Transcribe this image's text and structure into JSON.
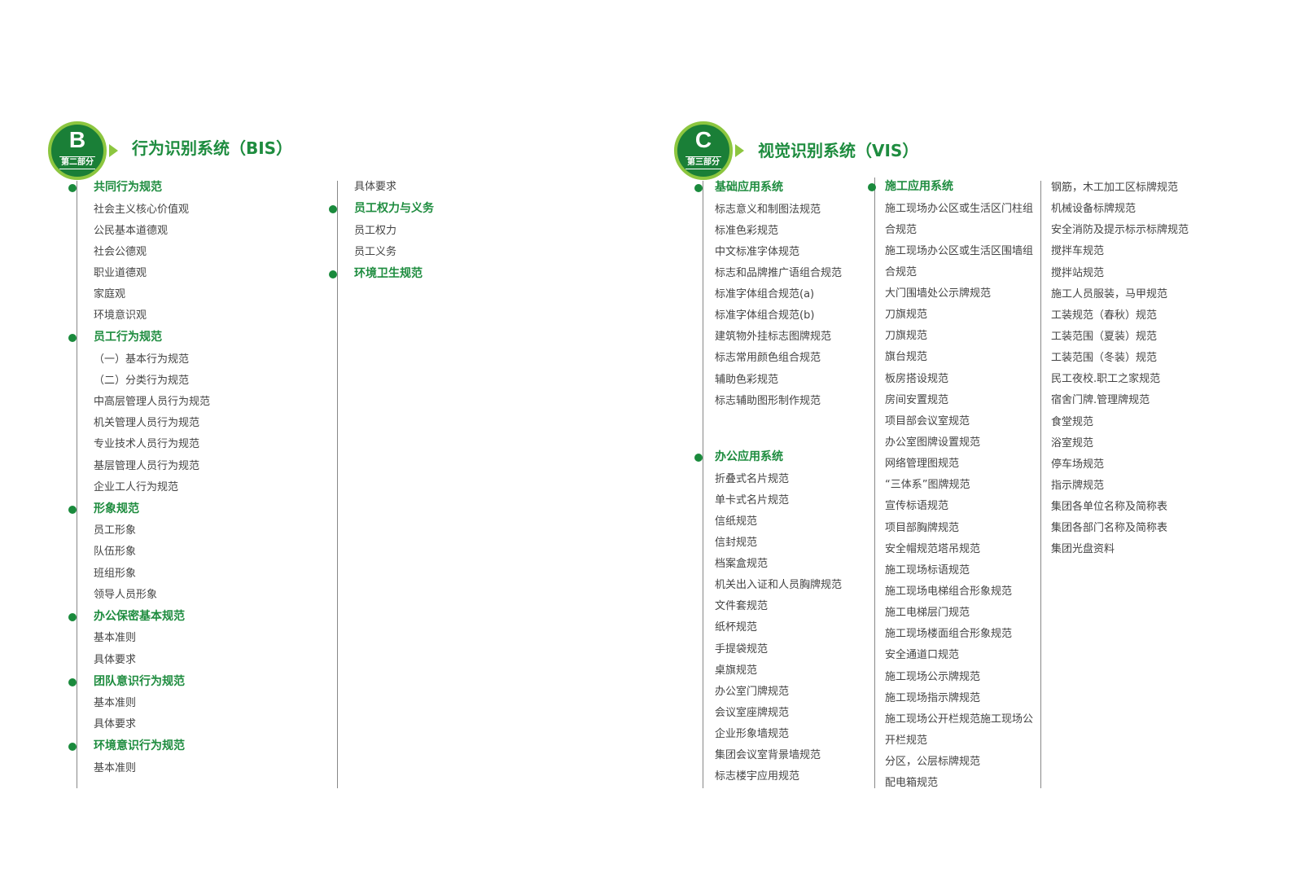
{
  "sections": [
    {
      "letter": "B",
      "part": "第二部分",
      "title": "行为识别系统（BIS）"
    },
    {
      "letter": "C",
      "part": "第三部分",
      "title": "视觉识别系统（VIS）"
    }
  ],
  "columns": {
    "b1": [
      {
        "t": "共同行为规范",
        "h": true
      },
      {
        "t": "社会主义核心价值观"
      },
      {
        "t": "公民基本道德观"
      },
      {
        "t": "社会公德观"
      },
      {
        "t": "职业道德观"
      },
      {
        "t": "家庭观"
      },
      {
        "t": "环境意识观"
      },
      {
        "t": "员工行为规范",
        "h": true
      },
      {
        "t": "（一）基本行为规范"
      },
      {
        "t": "（二）分类行为规范"
      },
      {
        "t": "中高层管理人员行为规范"
      },
      {
        "t": "机关管理人员行为规范"
      },
      {
        "t": "专业技术人员行为规范"
      },
      {
        "t": "基层管理人员行为规范"
      },
      {
        "t": "企业工人行为规范"
      },
      {
        "t": "形象规范",
        "h": true
      },
      {
        "t": "员工形象"
      },
      {
        "t": "队伍形象"
      },
      {
        "t": "班组形象"
      },
      {
        "t": "领导人员形象"
      },
      {
        "t": "办公保密基本规范",
        "h": true
      },
      {
        "t": "基本准则"
      },
      {
        "t": "具体要求"
      },
      {
        "t": "团队意识行为规范",
        "h": true
      },
      {
        "t": "基本准则"
      },
      {
        "t": "具体要求"
      },
      {
        "t": "环境意识行为规范",
        "h": true
      },
      {
        "t": "基本准则"
      }
    ],
    "b2": [
      {
        "t": "具体要求"
      },
      {
        "t": "员工权力与义务",
        "h": true
      },
      {
        "t": "员工权力"
      },
      {
        "t": "员工义务"
      },
      {
        "t": "环境卫生规范",
        "h": true
      }
    ],
    "c1a": [
      {
        "t": "基础应用系统",
        "h": true
      },
      {
        "t": "标志意义和制图法规范"
      },
      {
        "t": "标准色彩规范"
      },
      {
        "t": "中文标准字体规范"
      },
      {
        "t": "标志和品牌推广语组合规范"
      },
      {
        "t": "标准字体组合规范(a)"
      },
      {
        "t": "标准字体组合规范(b)"
      },
      {
        "t": "建筑物外挂标志图牌规范"
      },
      {
        "t": "标志常用颜色组合规范"
      },
      {
        "t": "辅助色彩规范"
      },
      {
        "t": "标志辅助图形制作规范"
      }
    ],
    "c1b": [
      {
        "t": "办公应用系统",
        "h": true
      },
      {
        "t": "折叠式名片规范"
      },
      {
        "t": "单卡式名片规范"
      },
      {
        "t": "信纸规范"
      },
      {
        "t": "信封规范"
      },
      {
        "t": "档案盒规范"
      },
      {
        "t": "机关出入证和人员胸牌规范"
      },
      {
        "t": "文件套规范"
      },
      {
        "t": "纸杯规范"
      },
      {
        "t": "手提袋规范"
      },
      {
        "t": "桌旗规范"
      },
      {
        "t": "办公室门牌规范"
      },
      {
        "t": "会议室座牌规范"
      },
      {
        "t": "企业形象墙规范"
      },
      {
        "t": "集团会议室背景墙规范"
      },
      {
        "t": "标志楼宇应用规范"
      }
    ],
    "c2": [
      {
        "t": "施工应用系统",
        "h": true
      },
      {
        "t": "施工现场办公区或生活区门柱组"
      },
      {
        "t": "合规范"
      },
      {
        "t": "施工现场办公区或生活区围墙组"
      },
      {
        "t": "合规范"
      },
      {
        "t": "大门围墙处公示牌规范"
      },
      {
        "t": "刀旗规范"
      },
      {
        "t": "刀旗规范"
      },
      {
        "t": "旗台规范"
      },
      {
        "t": "板房搭设规范"
      },
      {
        "t": "房间安置规范"
      },
      {
        "t": "项目部会议室规范"
      },
      {
        "t": "办公室图牌设置规范"
      },
      {
        "t": "网络管理图规范"
      },
      {
        "t": "“三体系”图牌规范"
      },
      {
        "t": "宣传标语规范"
      },
      {
        "t": "项目部胸牌规范"
      },
      {
        "t": "安全帽规范塔吊规范"
      },
      {
        "t": "施工现场标语规范"
      },
      {
        "t": "施工现场电梯组合形象规范"
      },
      {
        "t": "施工电梯层门规范"
      },
      {
        "t": "施工现场楼面组合形象规范"
      },
      {
        "t": "安全通道口规范"
      },
      {
        "t": "施工现场公示牌规范"
      },
      {
        "t": "施工现场指示牌规范"
      },
      {
        "t": "施工现场公开栏规范施工现场公"
      },
      {
        "t": "开栏规范"
      },
      {
        "t": "分区，公层标牌规范"
      },
      {
        "t": "配电箱规范"
      }
    ],
    "c3": [
      {
        "t": "钢筋，木工加工区标牌规范"
      },
      {
        "t": "机械设备标牌规范"
      },
      {
        "t": "安全消防及提示标示标牌规范"
      },
      {
        "t": "搅拌车规范"
      },
      {
        "t": "搅拌站规范"
      },
      {
        "t": "施工人员服装，马甲规范"
      },
      {
        "t": "工装规范（春秋）规范"
      },
      {
        "t": "工装范围（夏装）规范"
      },
      {
        "t": "工装范围（冬装）规范"
      },
      {
        "t": "民工夜校.职工之家规范"
      },
      {
        "t": "宿舍门牌.管理牌规范"
      },
      {
        "t": "食堂规范"
      },
      {
        "t": "浴室规范"
      },
      {
        "t": "停车场规范"
      },
      {
        "t": "指示牌规范"
      },
      {
        "t": "集团各单位名称及简称表"
      },
      {
        "t": "集团各部门名称及简称表"
      },
      {
        "t": "集团光盘资料"
      }
    ]
  }
}
